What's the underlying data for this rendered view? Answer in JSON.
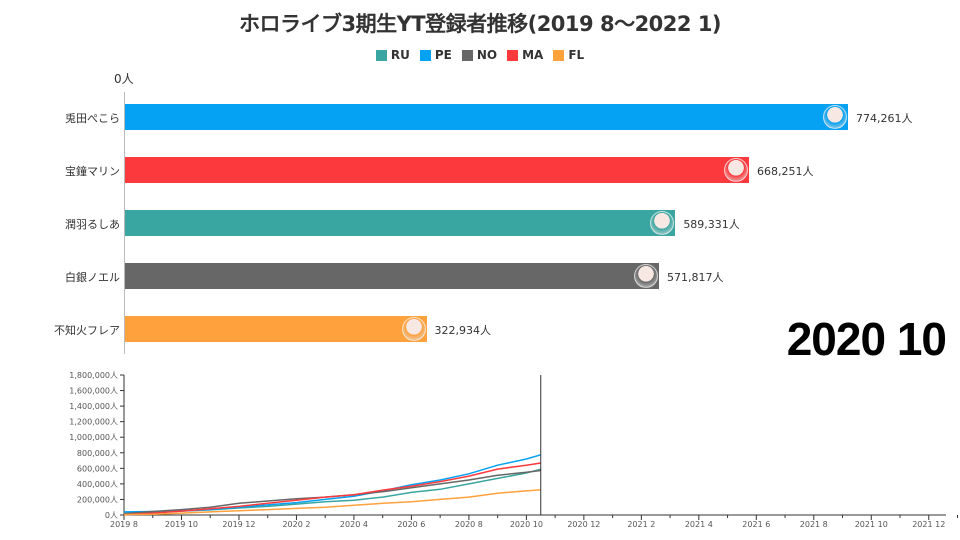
{
  "title": "ホロライブ3期生YT登録者推移(2019 8〜2022 1)",
  "current_date": "2020 10",
  "bar_axis_label": "0人",
  "legend": [
    {
      "code": "RU",
      "color": "#3aa6a1"
    },
    {
      "code": "PE",
      "color": "#05a1f2"
    },
    {
      "code": "NO",
      "color": "#676767"
    },
    {
      "code": "MA",
      "color": "#fc3a3e"
    },
    {
      "code": "FL",
      "color": "#ffa13c"
    }
  ],
  "chart_data": [
    {
      "type": "bar",
      "orientation": "horizontal",
      "title": "ホロライブ3期生YT登録者推移(2019 8〜2022 1)",
      "unit": "人",
      "period": "2020 10",
      "categories": [
        "兎田ぺこら",
        "宝鐘マリン",
        "潤羽るしあ",
        "白銀ノエル",
        "不知火フレア"
      ],
      "codes": [
        "PE",
        "MA",
        "RU",
        "NO",
        "FL"
      ],
      "values": [
        774261,
        668251,
        589331,
        571817,
        322934
      ],
      "value_labels": [
        "774,261人",
        "668,251人",
        "589,331人",
        "571,817人",
        "322,934人"
      ],
      "colors": [
        "#05a1f2",
        "#fc3a3e",
        "#3aa6a1",
        "#676767",
        "#ffa13c"
      ],
      "xlim": [
        0,
        870000
      ]
    },
    {
      "type": "line",
      "xlabel": "",
      "ylabel": "",
      "ylim": [
        0,
        1800000
      ],
      "y_ticks": [
        "0人",
        "200,000人",
        "400,000人",
        "600,000人",
        "800,000人",
        "1,000,000人",
        "1,200,000人",
        "1,400,000人",
        "1,600,000人",
        "1,800,000人"
      ],
      "x_ticks": [
        "2019 8",
        "2019 10",
        "2019 12",
        "2020 2",
        "2020 4",
        "2020 6",
        "2020 8",
        "2020 10",
        "2020 12",
        "2021 2",
        "2021 4",
        "2021 6",
        "2021 8",
        "2021 10",
        "2021 12"
      ],
      "x_range_months": [
        0,
        29
      ],
      "current_month_index": 14.5,
      "x": [
        0,
        1,
        2,
        3,
        4,
        5,
        6,
        7,
        8,
        9,
        10,
        11,
        12,
        13,
        14,
        14.5
      ],
      "series": [
        {
          "name": "RU",
          "color": "#3aa6a1",
          "values": [
            20000,
            35000,
            50000,
            65000,
            90000,
            110000,
            140000,
            170000,
            190000,
            230000,
            290000,
            330000,
            400000,
            470000,
            540000,
            589331
          ]
        },
        {
          "name": "PE",
          "color": "#05a1f2",
          "values": [
            40000,
            45000,
            55000,
            70000,
            100000,
            130000,
            160000,
            200000,
            240000,
            310000,
            390000,
            450000,
            530000,
            640000,
            720000,
            774261
          ]
        },
        {
          "name": "NO",
          "color": "#676767",
          "values": [
            15000,
            45000,
            70000,
            100000,
            150000,
            180000,
            210000,
            230000,
            260000,
            300000,
            350000,
            400000,
            450000,
            510000,
            550000,
            571817
          ]
        },
        {
          "name": "MA",
          "color": "#fc3a3e",
          "values": [
            5000,
            25000,
            50000,
            80000,
            110000,
            150000,
            190000,
            230000,
            260000,
            320000,
            370000,
            430000,
            500000,
            590000,
            640000,
            668251
          ]
        },
        {
          "name": "FL",
          "color": "#ffa13c",
          "values": [
            5000,
            10000,
            25000,
            40000,
            55000,
            70000,
            85000,
            100000,
            125000,
            150000,
            170000,
            200000,
            230000,
            280000,
            310000,
            322934
          ]
        }
      ]
    }
  ]
}
